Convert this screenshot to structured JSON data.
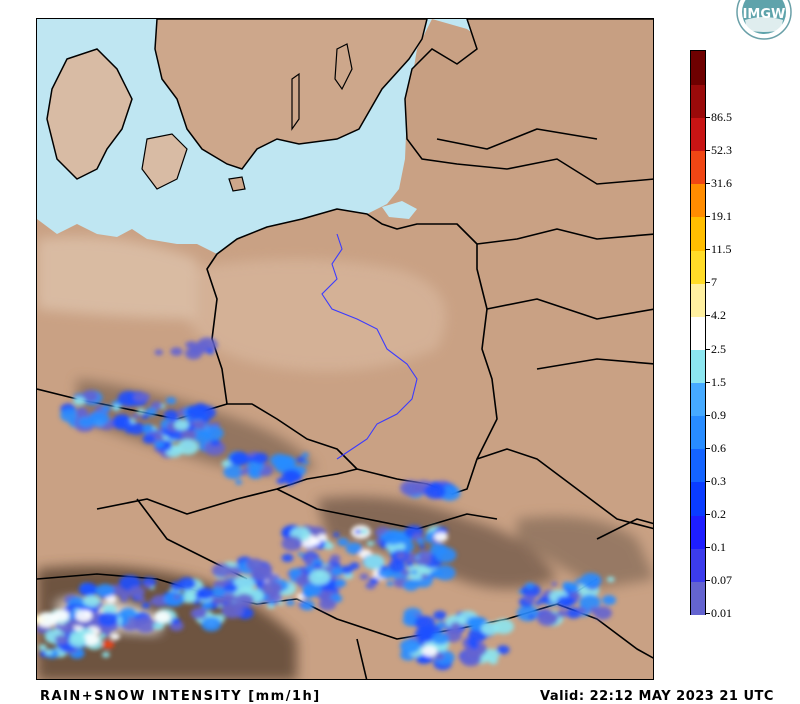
{
  "footer": {
    "product_label": "RAIN+SNOW INTENSITY [mm/1h]",
    "valid_label": "Valid: 22:12 MAY 2023 21 UTC"
  },
  "logo": {
    "text": "IMGW"
  },
  "legend": {
    "labels": [
      "0.01",
      "0.07",
      "0.1",
      "0.2",
      "0.3",
      "0.6",
      "0.9",
      "1.5",
      "2.5",
      "4.2",
      "7",
      "11.5",
      "19.1",
      "31.6",
      "52.3",
      "86.5"
    ],
    "colors": [
      "#6464d0",
      "#3c3cec",
      "#1e1eff",
      "#0a3cff",
      "#1464ff",
      "#288cff",
      "#46aaff",
      "#8ce6f0",
      "#ffffff",
      "#fff0a0",
      "#ffdc28",
      "#ffbe00",
      "#ff8c00",
      "#f04614",
      "#c81414",
      "#9a0a0a",
      "#6e0000"
    ]
  },
  "map": {
    "land_color": "#c9a184",
    "sea_color": "#bfe6f2",
    "border_color": "#000000",
    "river_color": "#3b3bff",
    "precip_colors": [
      "#6464d0",
      "#1e50ff",
      "#288cff",
      "#8ce6f0",
      "#ffffff",
      "#ffdc28",
      "#f04614"
    ]
  }
}
